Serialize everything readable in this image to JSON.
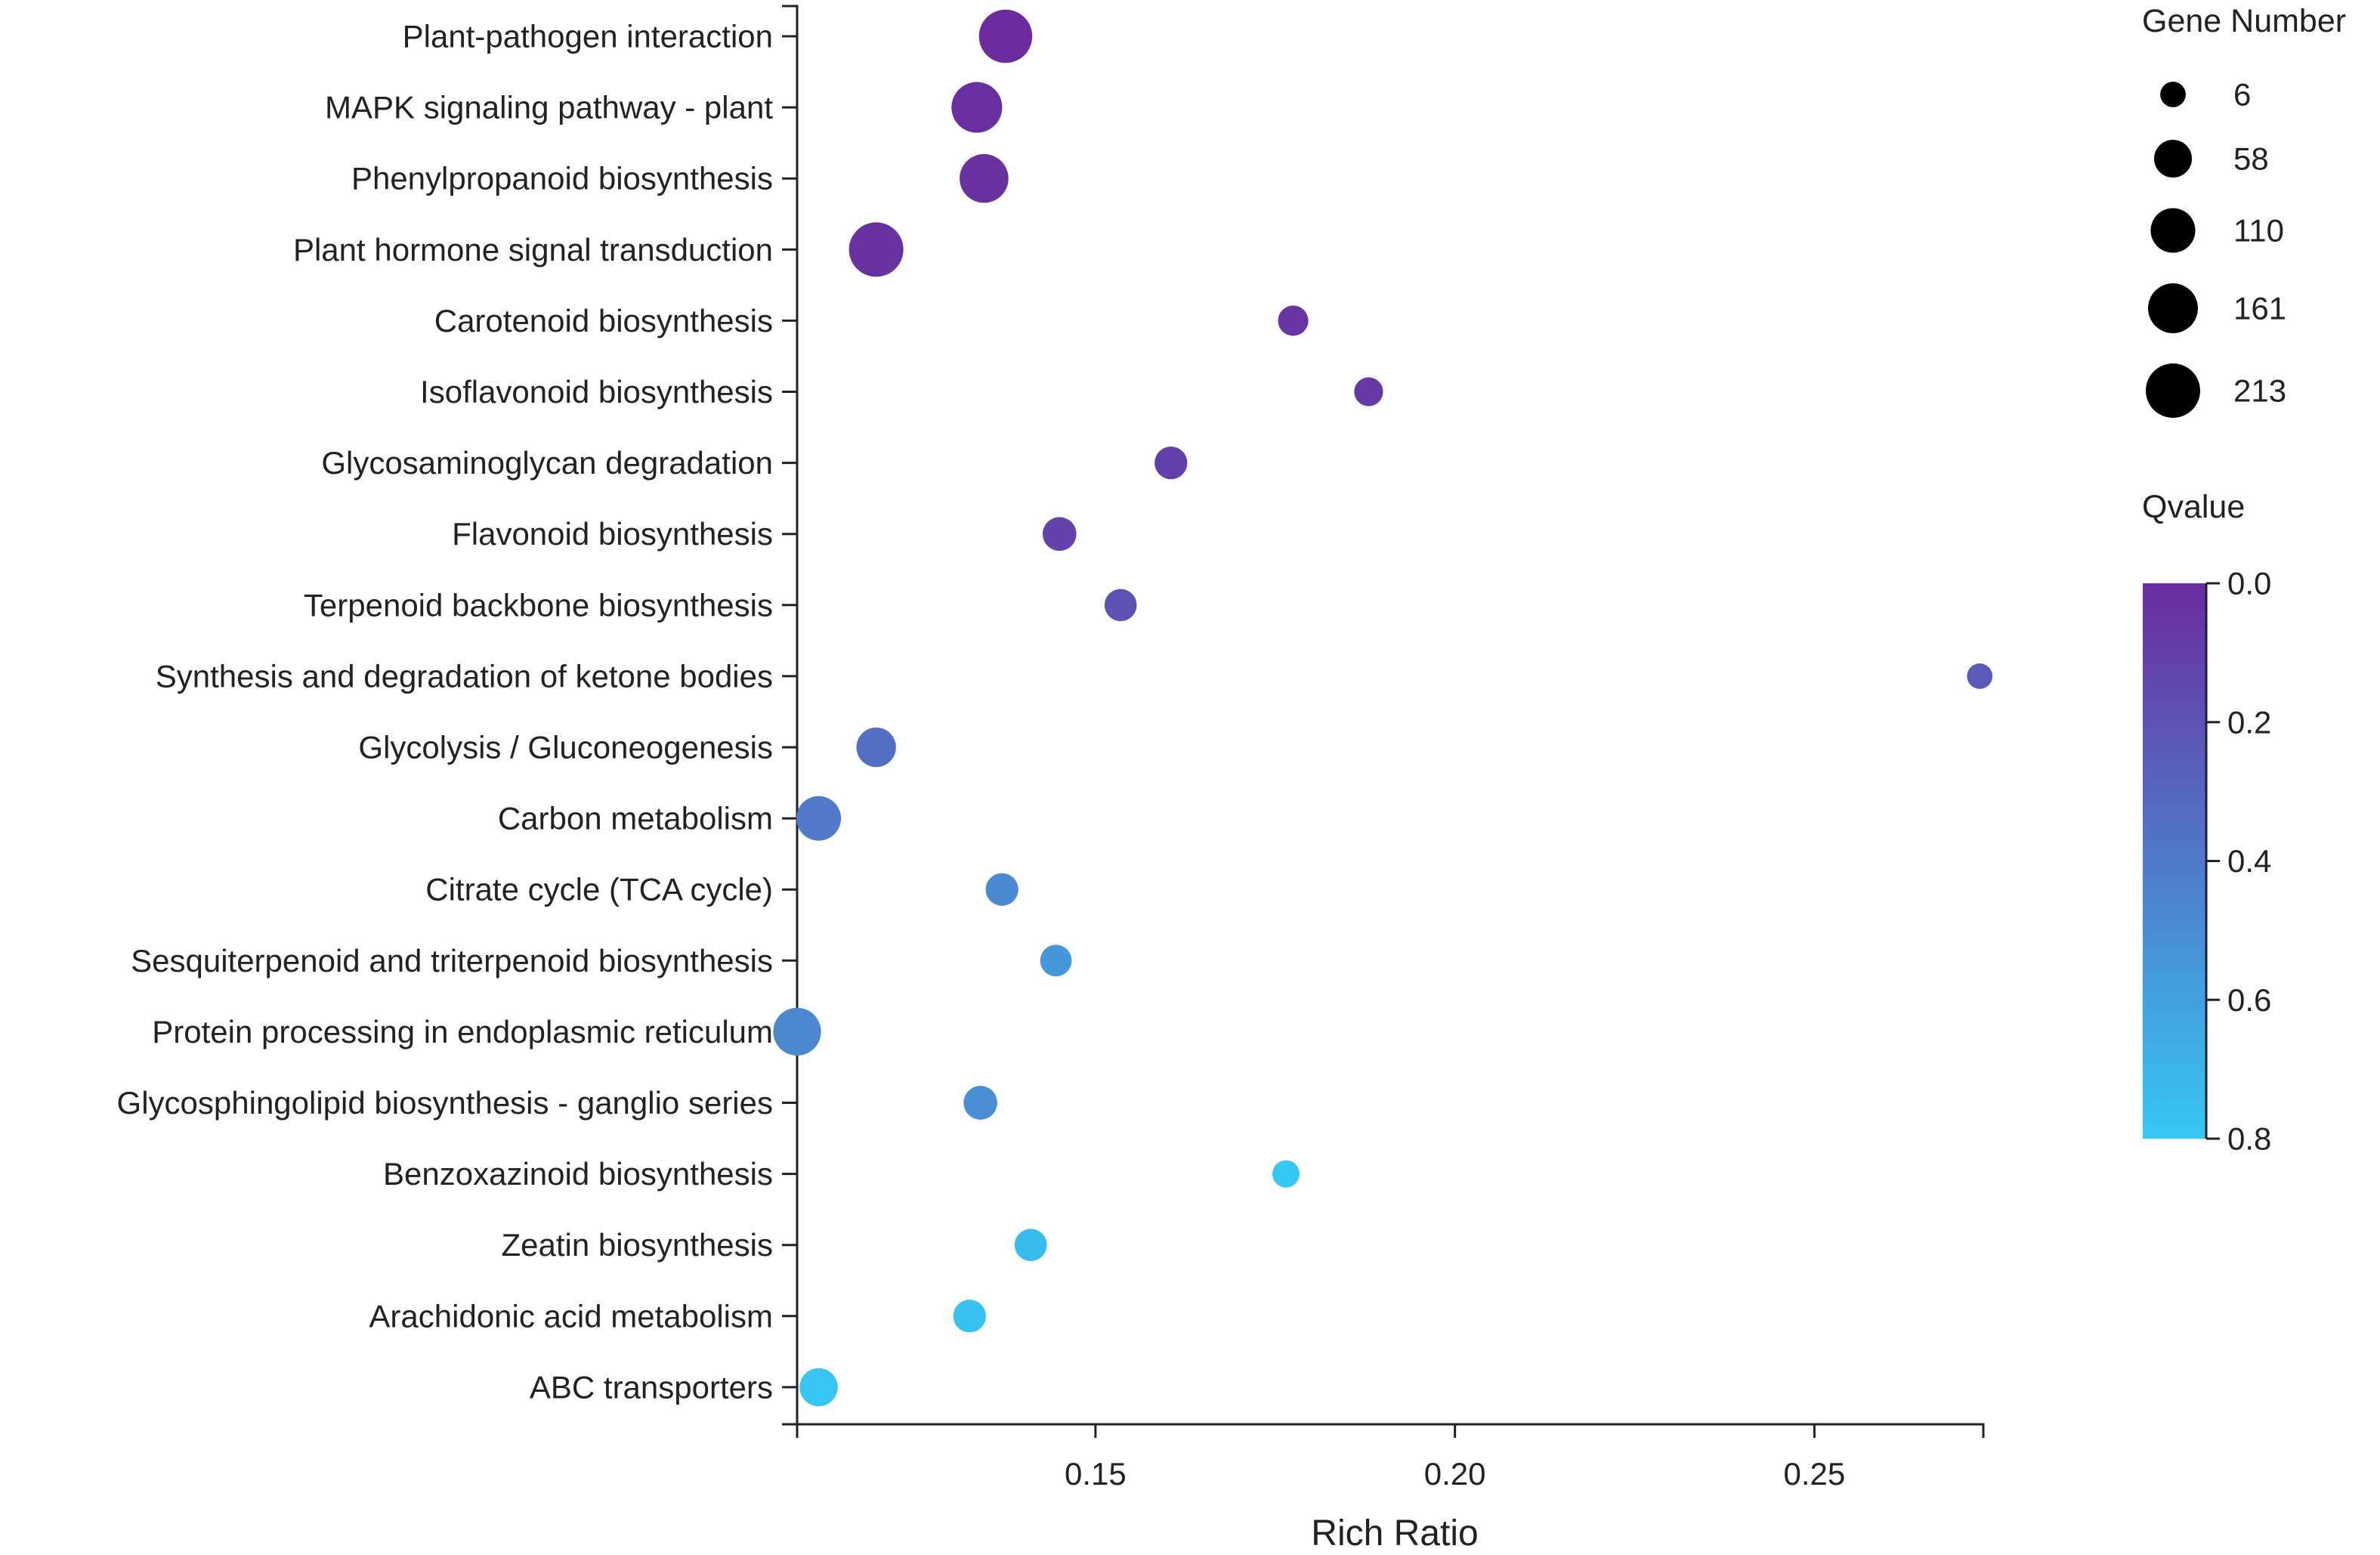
{
  "chart_data": {
    "type": "scatter",
    "title": "",
    "xlabel": "Rich Ratio",
    "ylabel": "",
    "xlim": [
      0.1085,
      0.2735
    ],
    "xticks": [
      0.15,
      0.2,
      0.25
    ],
    "xtick_labels": [
      "0.15",
      "0.20",
      "0.25"
    ],
    "categories": [
      "Plant-pathogen interaction",
      "MAPK signaling pathway - plant",
      "Phenylpropanoid biosynthesis",
      "Plant hormone signal transduction",
      "Carotenoid biosynthesis",
      "Isoflavonoid biosynthesis",
      "Glycosaminoglycan degradation",
      "Flavonoid biosynthesis",
      "Terpenoid backbone biosynthesis",
      "Synthesis and degradation of ketone bodies",
      "Glycolysis / Gluconeogenesis",
      "Carbon metabolism",
      "Citrate cycle (TCA cycle)",
      "Sesquiterpenoid and triterpenoid biosynthesis",
      "Protein processing in endoplasmic reticulum",
      "Glycosphingolipid biosynthesis - ganglio series",
      "Benzoxazinoid biosynthesis",
      "Zeatin biosynthesis",
      "Arachidonic acid metabolism",
      "ABC transporters"
    ],
    "points": [
      {
        "x": 0.1375,
        "gene_number": 200,
        "qvalue": 0.0
      },
      {
        "x": 0.1335,
        "gene_number": 170,
        "qvalue": 0.01
      },
      {
        "x": 0.1345,
        "gene_number": 150,
        "qvalue": 0.02
      },
      {
        "x": 0.1195,
        "gene_number": 213,
        "qvalue": 0.03
      },
      {
        "x": 0.1775,
        "gene_number": 20,
        "qvalue": 0.05
      },
      {
        "x": 0.188,
        "gene_number": 15,
        "qvalue": 0.06
      },
      {
        "x": 0.1605,
        "gene_number": 30,
        "qvalue": 0.1
      },
      {
        "x": 0.145,
        "gene_number": 35,
        "qvalue": 0.12
      },
      {
        "x": 0.1535,
        "gene_number": 28,
        "qvalue": 0.19
      },
      {
        "x": 0.273,
        "gene_number": 6,
        "qvalue": 0.24
      },
      {
        "x": 0.1195,
        "gene_number": 70,
        "qvalue": 0.34
      },
      {
        "x": 0.1115,
        "gene_number": 110,
        "qvalue": 0.4
      },
      {
        "x": 0.137,
        "gene_number": 30,
        "qvalue": 0.48
      },
      {
        "x": 0.1445,
        "gene_number": 25,
        "qvalue": 0.55
      },
      {
        "x": 0.1085,
        "gene_number": 140,
        "qvalue": 0.47
      },
      {
        "x": 0.134,
        "gene_number": 35,
        "qvalue": 0.5
      },
      {
        "x": 0.1765,
        "gene_number": 10,
        "qvalue": 0.8
      },
      {
        "x": 0.141,
        "gene_number": 28,
        "qvalue": 0.74
      },
      {
        "x": 0.1325,
        "gene_number": 30,
        "qvalue": 0.77
      },
      {
        "x": 0.1115,
        "gene_number": 60,
        "qvalue": 0.78
      }
    ],
    "size_legend": {
      "title": "Gene Number",
      "values": [
        6,
        58,
        110,
        161,
        213
      ],
      "labels": [
        "6",
        "58",
        "110",
        "161",
        "213"
      ]
    },
    "color_legend": {
      "title": "Qvalue",
      "range": [
        0.0,
        0.8
      ],
      "ticks": [
        0.0,
        0.2,
        0.4,
        0.6,
        0.8
      ],
      "tick_labels": [
        "0.0",
        "0.2",
        "0.4",
        "0.6",
        "0.8"
      ],
      "low_color": "#6A2C9E",
      "high_color": "#35C8F3"
    }
  }
}
